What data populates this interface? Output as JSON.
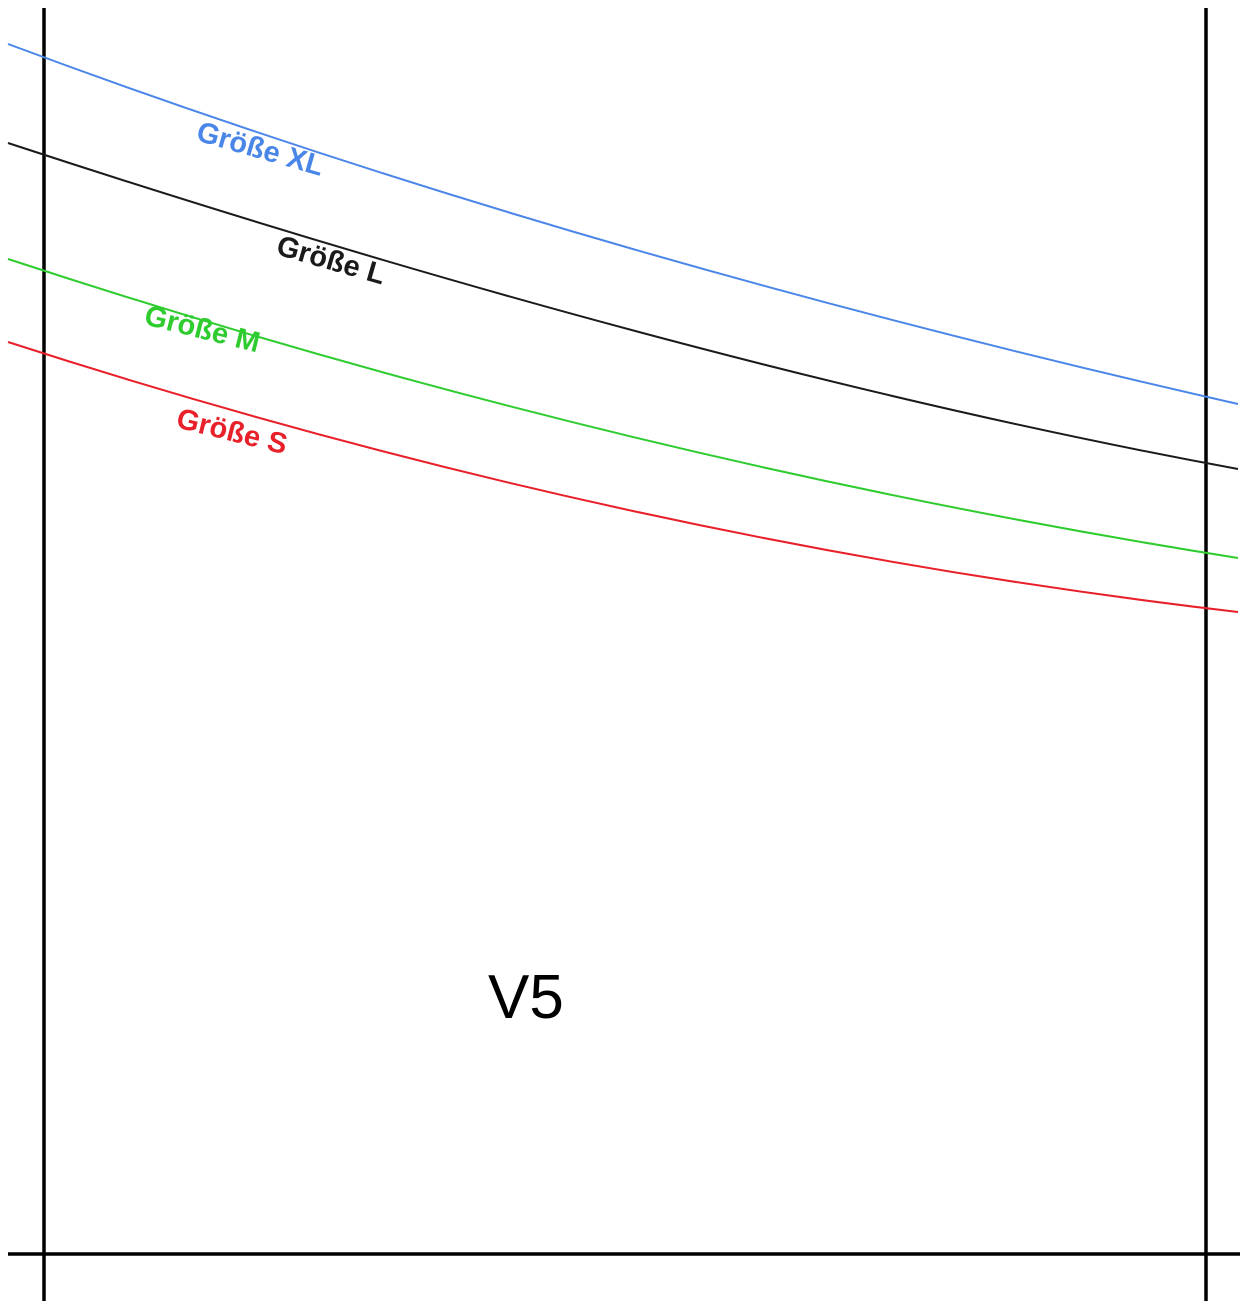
{
  "piece": {
    "label": "V5"
  },
  "sizes": [
    {
      "key": "xl",
      "label": "Größe XL",
      "color": "#4a86e8"
    },
    {
      "key": "l",
      "label": "Größe L",
      "color": "#1a1a1a"
    },
    {
      "key": "m",
      "label": "Größe M",
      "color": "#2ecc2e"
    },
    {
      "key": "s",
      "label": "Größe S",
      "color": "#e8202a"
    }
  ],
  "colors": {
    "frame": "#000000",
    "background": "#ffffff"
  }
}
